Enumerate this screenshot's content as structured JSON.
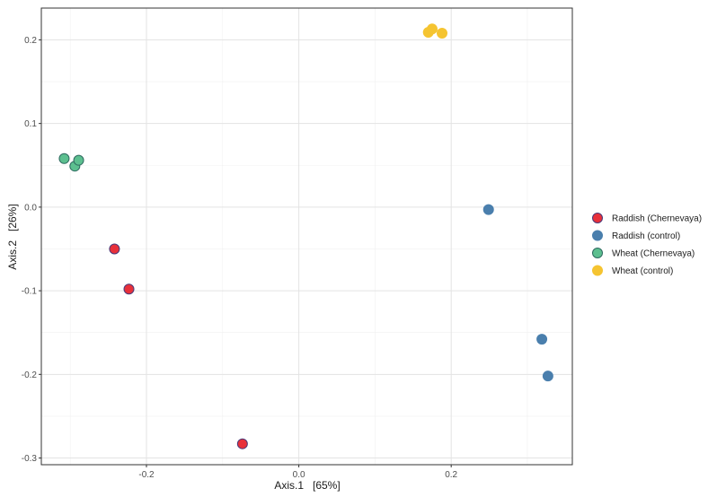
{
  "chart_data": {
    "type": "scatter",
    "xlabel": "Axis.1   [65%]",
    "ylabel": "Axis.2   [26%]",
    "xlim": [
      -0.338,
      0.359
    ],
    "ylim": [
      -0.308,
      0.238
    ],
    "x_ticks": [
      {
        "value": -0.2,
        "label": "-0.2"
      },
      {
        "value": 0.0,
        "label": "0.0"
      },
      {
        "value": 0.2,
        "label": "0.2"
      }
    ],
    "y_ticks": [
      {
        "value": 0.2,
        "label": "0.2"
      },
      {
        "value": 0.1,
        "label": "0.1"
      },
      {
        "value": 0.0,
        "label": "0.0"
      },
      {
        "value": -0.1,
        "label": "-0.1"
      },
      {
        "value": -0.2,
        "label": "-0.2"
      },
      {
        "value": -0.3,
        "label": "-0.3"
      }
    ],
    "grid": true,
    "legend_position": "right",
    "series": [
      {
        "name": "Raddish (Chernevaya)",
        "color": "#e8303a",
        "stroke": "#4a3a7a",
        "points": [
          [
            -0.242,
            -0.05
          ],
          [
            -0.223,
            -0.098
          ],
          [
            -0.074,
            -0.283
          ]
        ]
      },
      {
        "name": "Raddish (control)",
        "color": "#4a7fad",
        "stroke": "#4a7fad",
        "points": [
          [
            0.249,
            -0.003
          ],
          [
            0.319,
            -0.158
          ],
          [
            0.327,
            -0.202
          ]
        ]
      },
      {
        "name": "Wheat (Chernevaya)",
        "color": "#5cbf8f",
        "stroke": "#2f6a60",
        "points": [
          [
            -0.308,
            0.058
          ],
          [
            -0.294,
            0.049
          ],
          [
            -0.289,
            0.056
          ]
        ]
      },
      {
        "name": "Wheat (control)",
        "color": "#f5c431",
        "stroke": "#f5c431",
        "points": [
          [
            0.17,
            0.209
          ],
          [
            0.175,
            0.213
          ],
          [
            0.188,
            0.208
          ]
        ]
      }
    ]
  }
}
